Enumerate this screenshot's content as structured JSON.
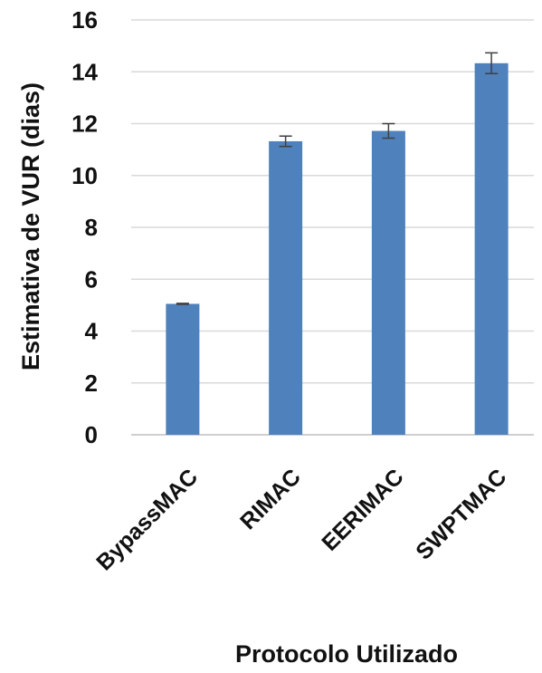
{
  "chart_data": {
    "type": "bar",
    "categories": [
      "BypassMAC",
      "RIMAC",
      "EERIMAC",
      "SWPTMAC"
    ],
    "values": [
      5.05,
      11.32,
      11.72,
      14.33
    ],
    "error": [
      0.02,
      0.2,
      0.28,
      0.4
    ],
    "xlabel": "Protocolo Utilizado",
    "ylabel": "Estimativa de VUR (dias)",
    "ylim": [
      0,
      16
    ],
    "yticks": [
      0,
      2,
      4,
      6,
      8,
      10,
      12,
      14,
      16
    ],
    "grid": true,
    "legend": "none",
    "bar_color": "#4f81bd",
    "grid_color": "#d9d9d9",
    "error_bar_color": "#404040"
  }
}
